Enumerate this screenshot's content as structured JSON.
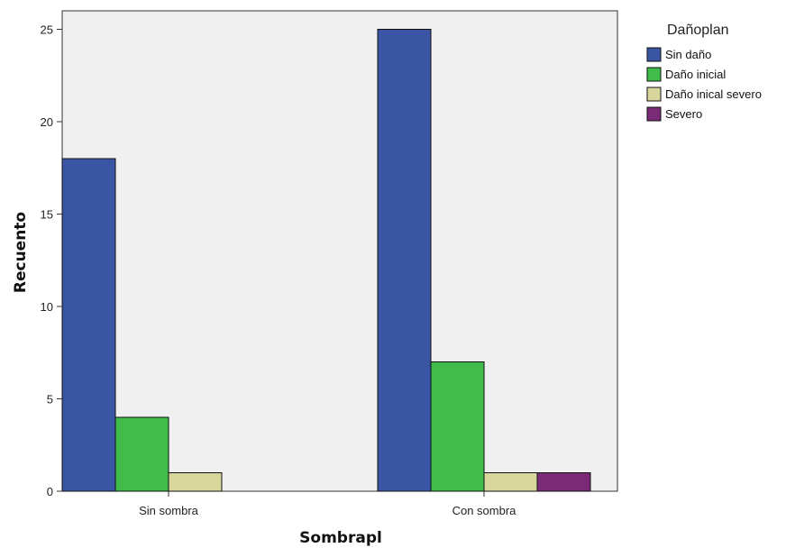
{
  "chart_data": {
    "type": "bar",
    "title": "",
    "xlabel": "Sombrapl",
    "ylabel": "Recuento",
    "categories": [
      "Sin sombra",
      "Con sombra"
    ],
    "ylim": [
      0,
      26
    ],
    "yticks": [
      0,
      5,
      10,
      15,
      20,
      25
    ],
    "legend": {
      "title": "Dañoplan",
      "placement": "top-right-outside"
    },
    "series": [
      {
        "name": "Sin daño",
        "color": "#3a55a4",
        "values": [
          18,
          25
        ]
      },
      {
        "name": "Daño inicial",
        "color": "#3fbc4a",
        "values": [
          4,
          7
        ]
      },
      {
        "name": "Daño inical severo",
        "color": "#d8d69a",
        "values": [
          1,
          1
        ]
      },
      {
        "name": "Severo",
        "color": "#7b2a78",
        "values": [
          0,
          1
        ]
      }
    ],
    "plot_background": "#f0f0f0",
    "grid": false
  }
}
